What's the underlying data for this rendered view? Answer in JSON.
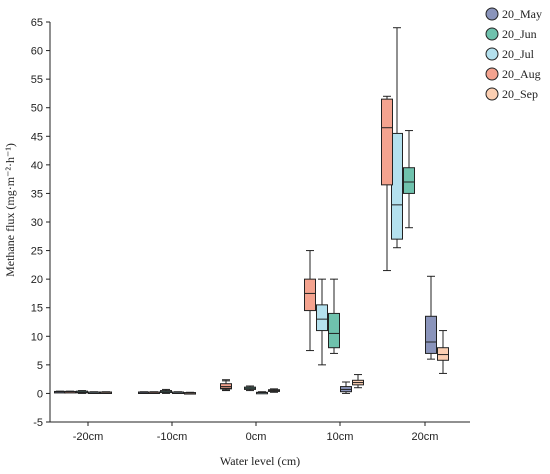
{
  "chart_data": {
    "type": "box",
    "xlabel": "Water level (cm)",
    "ylabel": "Methane flux (mg·m⁻²·h⁻¹)",
    "ylim": [
      -5,
      65
    ],
    "yticks": [
      -5,
      0,
      5,
      10,
      15,
      20,
      25,
      30,
      35,
      40,
      45,
      50,
      55,
      60,
      65
    ],
    "grid": false,
    "legend_position": "top-right",
    "categories": [
      "-20cm",
      "-10cm",
      "0cm",
      "10cm",
      "20cm"
    ],
    "series": [
      {
        "name": "20_May",
        "color": "#8a94bb",
        "boxes": [
          {
            "min": 0.2,
            "q1": 0.25,
            "median": 0.3,
            "q3": 0.35,
            "max": 0.4
          },
          {
            "min": 0.1,
            "q1": 0.15,
            "median": 0.2,
            "q3": 0.25,
            "max": 0.3
          },
          {
            "min": 0.5,
            "q1": 0.8,
            "median": 1.1,
            "q3": 1.6,
            "max": 2.2
          },
          {
            "min": 0.0,
            "q1": 0.3,
            "median": 0.7,
            "q3": 1.2,
            "max": 2.0
          },
          {
            "min": 6.0,
            "q1": 7.0,
            "median": 9.0,
            "q3": 13.5,
            "max": 20.5
          }
        ]
      },
      {
        "name": "20_Jun",
        "color": "#6fc2ad",
        "boxes": [
          {
            "min": 0.0,
            "q1": 0.1,
            "median": 0.2,
            "q3": 0.4,
            "max": 0.5
          },
          {
            "min": 0.0,
            "q1": 0.15,
            "median": 0.3,
            "q3": 0.5,
            "max": 0.7
          },
          {
            "min": 0.5,
            "q1": 0.7,
            "median": 0.9,
            "q3": 1.1,
            "max": 1.3
          },
          {
            "min": 7.0,
            "q1": 8.0,
            "median": 10.5,
            "q3": 14.0,
            "max": 20.0
          },
          {
            "min": 29.0,
            "q1": 35.0,
            "median": 37.0,
            "q3": 39.5,
            "max": 46.0
          }
        ]
      },
      {
        "name": "20_Jul",
        "color": "#b4e1ee",
        "boxes": [
          {
            "min": 0.1,
            "q1": 0.15,
            "median": 0.2,
            "q3": 0.25,
            "max": 0.3
          },
          {
            "min": 0.1,
            "q1": 0.15,
            "median": 0.2,
            "q3": 0.25,
            "max": 0.3
          },
          {
            "min": 0.0,
            "q1": 0.1,
            "median": 0.15,
            "q3": 0.2,
            "max": 0.3
          },
          {
            "min": 5.0,
            "q1": 11.0,
            "median": 13.0,
            "q3": 15.5,
            "max": 20.0
          },
          {
            "min": 25.5,
            "q1": 27.0,
            "median": 33.0,
            "q3": 45.5,
            "max": 64.0
          }
        ]
      },
      {
        "name": "20_Aug",
        "color": "#f4a38f",
        "boxes": [
          {
            "min": 0.2,
            "q1": 0.25,
            "median": 0.3,
            "q3": 0.35,
            "max": 0.4
          },
          {
            "min": 0.1,
            "q1": 0.15,
            "median": 0.2,
            "q3": 0.25,
            "max": 0.3
          },
          {
            "min": 0.6,
            "q1": 0.9,
            "median": 1.2,
            "q3": 1.7,
            "max": 2.4
          },
          {
            "min": 7.5,
            "q1": 14.5,
            "median": 17.5,
            "q3": 20.0,
            "max": 25.0
          },
          {
            "min": 21.5,
            "q1": 36.5,
            "median": 46.5,
            "q3": 51.5,
            "max": 52.0
          }
        ]
      },
      {
        "name": "20_Sep",
        "color": "#fccfb2",
        "boxes": [
          {
            "min": 0.1,
            "q1": 0.15,
            "median": 0.2,
            "q3": 0.25,
            "max": 0.3
          },
          {
            "min": 0.0,
            "q1": 0.05,
            "median": 0.1,
            "q3": 0.15,
            "max": 0.2
          },
          {
            "min": 0.2,
            "q1": 0.35,
            "median": 0.5,
            "q3": 0.65,
            "max": 0.8
          },
          {
            "min": 1.0,
            "q1": 1.5,
            "median": 1.9,
            "q3": 2.3,
            "max": 3.3
          },
          {
            "min": 3.5,
            "q1": 5.8,
            "median": 6.8,
            "q3": 8.0,
            "max": 11.0
          }
        ]
      }
    ]
  }
}
